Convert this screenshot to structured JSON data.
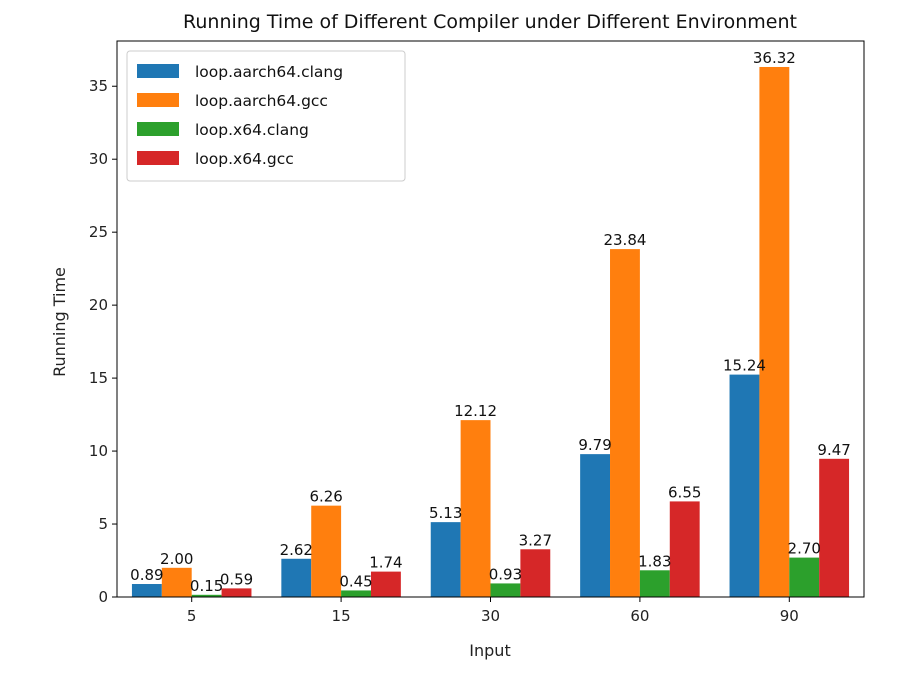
{
  "chart_data": {
    "type": "bar",
    "title": "Running Time of Different Compiler under Different Environment",
    "xlabel": "Input",
    "ylabel": "Running Time",
    "categories": [
      "5",
      "15",
      "30",
      "60",
      "90"
    ],
    "ylim": [
      0,
      38.1
    ],
    "yticks": [
      0,
      5,
      10,
      15,
      20,
      25,
      30,
      35
    ],
    "grid": false,
    "legend_position": "top-left",
    "series": [
      {
        "name": "loop.aarch64.clang",
        "color": "#1f77b4",
        "values": [
          0.89,
          2.62,
          5.13,
          9.79,
          15.24
        ],
        "labels": [
          "0.89",
          "2.62",
          "5.13",
          "9.79",
          "15.24"
        ]
      },
      {
        "name": "loop.aarch64.gcc",
        "color": "#ff7f0e",
        "values": [
          2.0,
          6.26,
          12.12,
          23.84,
          36.32
        ],
        "labels": [
          "2.00",
          "6.26",
          "12.12",
          "23.84",
          "36.32"
        ]
      },
      {
        "name": "loop.x64.clang",
        "color": "#2ca02c",
        "values": [
          0.15,
          0.45,
          0.93,
          1.83,
          2.7
        ],
        "labels": [
          "0.15",
          "0.45",
          "0.93",
          "1.83",
          "2.70"
        ]
      },
      {
        "name": "loop.x64.gcc",
        "color": "#d62728",
        "values": [
          0.59,
          1.74,
          3.27,
          6.55,
          9.47
        ],
        "labels": [
          "0.59",
          "1.74",
          "3.27",
          "6.55",
          "9.47"
        ]
      }
    ]
  }
}
